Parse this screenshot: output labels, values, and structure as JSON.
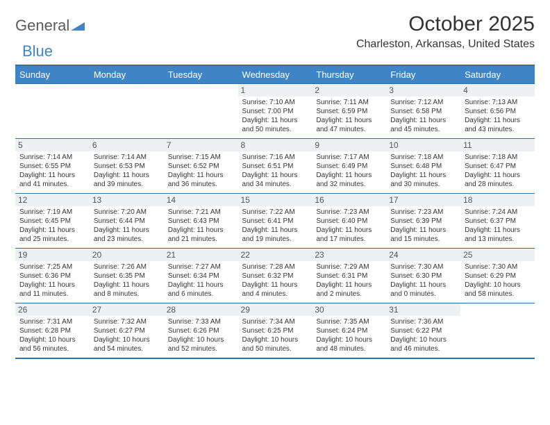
{
  "brand": {
    "part1": "General",
    "part2": "Blue"
  },
  "title": "October 2025",
  "location": "Charleston, Arkansas, United States",
  "colors": {
    "header_bg": "#3f85c6",
    "header_text": "#ffffff",
    "rule": "#2f6fa8",
    "daynum_bg": "#eef1f3",
    "text": "#333333"
  },
  "weekdays": [
    "Sunday",
    "Monday",
    "Tuesday",
    "Wednesday",
    "Thursday",
    "Friday",
    "Saturday"
  ],
  "weeks": [
    [
      {
        "n": "",
        "sr": "",
        "ss": "",
        "dl": ""
      },
      {
        "n": "",
        "sr": "",
        "ss": "",
        "dl": ""
      },
      {
        "n": "",
        "sr": "",
        "ss": "",
        "dl": ""
      },
      {
        "n": "1",
        "sr": "7:10 AM",
        "ss": "7:00 PM",
        "dl": "11 hours and 50 minutes."
      },
      {
        "n": "2",
        "sr": "7:11 AM",
        "ss": "6:59 PM",
        "dl": "11 hours and 47 minutes."
      },
      {
        "n": "3",
        "sr": "7:12 AM",
        "ss": "6:58 PM",
        "dl": "11 hours and 45 minutes."
      },
      {
        "n": "4",
        "sr": "7:13 AM",
        "ss": "6:56 PM",
        "dl": "11 hours and 43 minutes."
      }
    ],
    [
      {
        "n": "5",
        "sr": "7:14 AM",
        "ss": "6:55 PM",
        "dl": "11 hours and 41 minutes."
      },
      {
        "n": "6",
        "sr": "7:14 AM",
        "ss": "6:53 PM",
        "dl": "11 hours and 39 minutes."
      },
      {
        "n": "7",
        "sr": "7:15 AM",
        "ss": "6:52 PM",
        "dl": "11 hours and 36 minutes."
      },
      {
        "n": "8",
        "sr": "7:16 AM",
        "ss": "6:51 PM",
        "dl": "11 hours and 34 minutes."
      },
      {
        "n": "9",
        "sr": "7:17 AM",
        "ss": "6:49 PM",
        "dl": "11 hours and 32 minutes."
      },
      {
        "n": "10",
        "sr": "7:18 AM",
        "ss": "6:48 PM",
        "dl": "11 hours and 30 minutes."
      },
      {
        "n": "11",
        "sr": "7:18 AM",
        "ss": "6:47 PM",
        "dl": "11 hours and 28 minutes."
      }
    ],
    [
      {
        "n": "12",
        "sr": "7:19 AM",
        "ss": "6:45 PM",
        "dl": "11 hours and 25 minutes."
      },
      {
        "n": "13",
        "sr": "7:20 AM",
        "ss": "6:44 PM",
        "dl": "11 hours and 23 minutes."
      },
      {
        "n": "14",
        "sr": "7:21 AM",
        "ss": "6:43 PM",
        "dl": "11 hours and 21 minutes."
      },
      {
        "n": "15",
        "sr": "7:22 AM",
        "ss": "6:41 PM",
        "dl": "11 hours and 19 minutes."
      },
      {
        "n": "16",
        "sr": "7:23 AM",
        "ss": "6:40 PM",
        "dl": "11 hours and 17 minutes."
      },
      {
        "n": "17",
        "sr": "7:23 AM",
        "ss": "6:39 PM",
        "dl": "11 hours and 15 minutes."
      },
      {
        "n": "18",
        "sr": "7:24 AM",
        "ss": "6:37 PM",
        "dl": "11 hours and 13 minutes."
      }
    ],
    [
      {
        "n": "19",
        "sr": "7:25 AM",
        "ss": "6:36 PM",
        "dl": "11 hours and 11 minutes."
      },
      {
        "n": "20",
        "sr": "7:26 AM",
        "ss": "6:35 PM",
        "dl": "11 hours and 8 minutes."
      },
      {
        "n": "21",
        "sr": "7:27 AM",
        "ss": "6:34 PM",
        "dl": "11 hours and 6 minutes."
      },
      {
        "n": "22",
        "sr": "7:28 AM",
        "ss": "6:32 PM",
        "dl": "11 hours and 4 minutes."
      },
      {
        "n": "23",
        "sr": "7:29 AM",
        "ss": "6:31 PM",
        "dl": "11 hours and 2 minutes."
      },
      {
        "n": "24",
        "sr": "7:30 AM",
        "ss": "6:30 PM",
        "dl": "11 hours and 0 minutes."
      },
      {
        "n": "25",
        "sr": "7:30 AM",
        "ss": "6:29 PM",
        "dl": "10 hours and 58 minutes."
      }
    ],
    [
      {
        "n": "26",
        "sr": "7:31 AM",
        "ss": "6:28 PM",
        "dl": "10 hours and 56 minutes."
      },
      {
        "n": "27",
        "sr": "7:32 AM",
        "ss": "6:27 PM",
        "dl": "10 hours and 54 minutes."
      },
      {
        "n": "28",
        "sr": "7:33 AM",
        "ss": "6:26 PM",
        "dl": "10 hours and 52 minutes."
      },
      {
        "n": "29",
        "sr": "7:34 AM",
        "ss": "6:25 PM",
        "dl": "10 hours and 50 minutes."
      },
      {
        "n": "30",
        "sr": "7:35 AM",
        "ss": "6:24 PM",
        "dl": "10 hours and 48 minutes."
      },
      {
        "n": "31",
        "sr": "7:36 AM",
        "ss": "6:22 PM",
        "dl": "10 hours and 46 minutes."
      },
      {
        "n": "",
        "sr": "",
        "ss": "",
        "dl": ""
      }
    ]
  ],
  "labels": {
    "sunrise": "Sunrise:",
    "sunset": "Sunset:",
    "daylight": "Daylight:"
  }
}
